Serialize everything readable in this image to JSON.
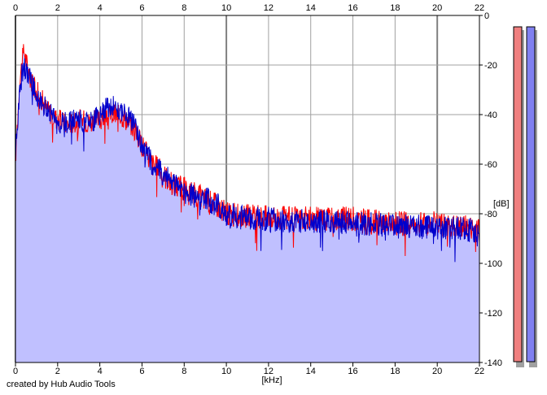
{
  "chart_data": {
    "type": "area",
    "title": "",
    "xlabel": "[kHz]",
    "ylabel": "[dB]",
    "xlim": [
      0,
      22
    ],
    "ylim": [
      -140,
      0
    ],
    "x_ticks": [
      "0",
      "2",
      "4",
      "6",
      "8",
      "10",
      "12",
      "14",
      "16",
      "18",
      "20",
      "22"
    ],
    "y_ticks": [
      "0",
      "-20",
      "-40",
      "-60",
      "-80",
      "-100",
      "-120",
      "-140"
    ],
    "grid": true,
    "colors": {
      "left": "#ff0000",
      "right": "#0000cc",
      "fill": "#c0c0ff",
      "grid": "#a0a0a0",
      "major_grid": "#808080"
    },
    "series": [
      {
        "x": [
          0,
          0.2,
          0.4,
          0.6,
          0.8,
          1,
          1.5,
          2,
          2.5,
          3,
          3.5,
          4,
          4.5,
          5,
          5.5,
          6,
          6.5,
          7,
          7.5,
          8,
          8.5,
          9,
          9.5,
          10,
          11,
          12,
          13,
          14,
          15,
          16,
          17,
          18,
          19,
          20,
          21,
          22
        ],
        "values": [
          -58,
          -26,
          -14,
          -22,
          -28,
          -30,
          -38,
          -42,
          -44,
          -42,
          -43,
          -42,
          -40,
          -40,
          -44,
          -52,
          -60,
          -64,
          -68,
          -70,
          -72,
          -74,
          -76,
          -80,
          -81,
          -81,
          -82,
          -82,
          -82,
          -82,
          -83,
          -84,
          -84,
          -84,
          -85,
          -86
        ]
      },
      {
        "x": [
          0,
          0.2,
          0.4,
          0.6,
          0.8,
          1,
          1.5,
          2,
          2.5,
          3,
          3.5,
          4,
          4.5,
          5,
          5.5,
          6,
          6.5,
          7,
          7.5,
          8,
          8.5,
          9,
          9.5,
          10,
          11,
          12,
          13,
          14,
          15,
          16,
          17,
          18,
          19,
          20,
          21,
          22
        ],
        "values": [
          -58,
          -28,
          -20,
          -24,
          -28,
          -32,
          -38,
          -44,
          -43,
          -42,
          -44,
          -40,
          -36,
          -38,
          -42,
          -52,
          -60,
          -64,
          -68,
          -71,
          -73,
          -74,
          -76,
          -80,
          -82,
          -82,
          -83,
          -83,
          -83,
          -84,
          -84,
          -85,
          -85,
          -86,
          -86,
          -87
        ]
      }
    ],
    "level_meters": [
      {
        "color": "#f08080"
      },
      {
        "color": "#8080f0"
      }
    ]
  },
  "credit": "created by Hub Audio Tools"
}
